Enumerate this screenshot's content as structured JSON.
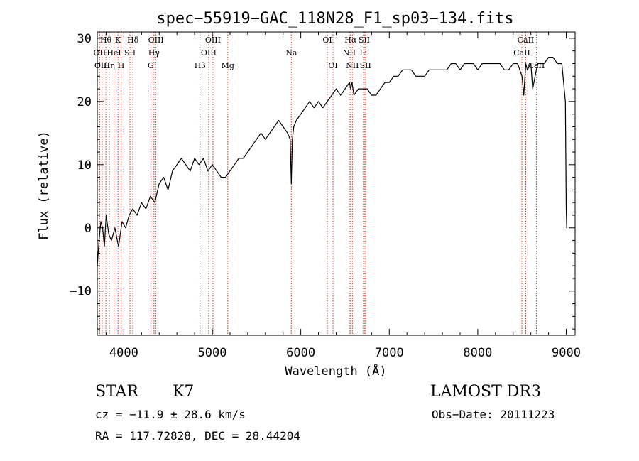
{
  "chart_data": {
    "type": "line",
    "title": "spec−55919−GAC_118N28_F1_sp03−134.fits",
    "xlabel": "Wavelength (Å)",
    "ylabel": "Flux (relative)",
    "xlim": [
      3700,
      9100
    ],
    "ylim": [
      -17,
      31
    ],
    "xticks": [
      4000,
      5000,
      6000,
      7000,
      8000,
      9000
    ],
    "yticks": [
      -10,
      0,
      10,
      20,
      30
    ],
    "grid": false,
    "series": [
      {
        "x": [
          3700,
          3720,
          3740,
          3760,
          3780,
          3800,
          3830,
          3860,
          3900,
          3940,
          3980,
          4020,
          4060,
          4100,
          4150,
          4200,
          4250,
          4300,
          4350,
          4400,
          4450,
          4500,
          4550,
          4600,
          4650,
          4700,
          4750,
          4800,
          4850,
          4900,
          4950,
          5000,
          5050,
          5100,
          5150,
          5200,
          5250,
          5300,
          5350,
          5400,
          5450,
          5500,
          5550,
          5600,
          5650,
          5700,
          5750,
          5800,
          5850,
          5880,
          5893,
          5905,
          5920,
          5950,
          6000,
          6050,
          6100,
          6150,
          6200,
          6250,
          6300,
          6350,
          6400,
          6450,
          6500,
          6550,
          6563,
          6580,
          6600,
          6650,
          6700,
          6750,
          6800,
          6850,
          6900,
          6950,
          7000,
          7050,
          7100,
          7150,
          7200,
          7250,
          7300,
          7350,
          7400,
          7450,
          7500,
          7550,
          7600,
          7650,
          7700,
          7750,
          7800,
          7850,
          7900,
          7950,
          8000,
          8050,
          8100,
          8150,
          8200,
          8250,
          8300,
          8350,
          8400,
          8450,
          8500,
          8520,
          8542,
          8560,
          8600,
          8620,
          8662,
          8680,
          8700,
          8750,
          8800,
          8850,
          8900,
          8950,
          8990,
          9000,
          9005,
          9010
        ],
        "values": [
          -6,
          -2,
          1,
          0,
          -3,
          2,
          -1,
          -2,
          0,
          -3,
          1,
          0,
          2,
          3,
          2,
          4,
          3,
          5,
          4,
          7,
          8,
          6,
          9,
          10,
          11,
          10,
          9,
          11,
          10,
          11,
          9,
          10,
          9,
          8,
          8,
          9,
          10,
          11,
          11,
          12,
          13,
          14,
          15,
          14,
          15,
          16,
          17,
          16,
          15,
          14,
          7,
          14,
          16,
          17,
          18,
          19,
          20,
          19,
          20,
          19,
          20,
          21,
          22,
          21,
          22,
          23,
          22,
          23,
          21,
          22,
          22,
          22,
          21,
          21,
          22,
          23,
          23,
          24,
          24,
          25,
          25,
          25,
          24,
          24,
          24,
          25,
          25,
          25,
          25,
          25,
          26,
          26,
          25,
          26,
          26,
          26,
          25,
          26,
          26,
          26,
          26,
          26,
          25,
          25,
          26,
          26,
          24,
          21,
          26,
          25,
          26,
          22,
          25,
          26,
          26,
          26,
          27,
          27,
          26,
          26,
          20,
          3,
          0,
          0
        ]
      }
    ],
    "lines": [
      {
        "label": "Hθ",
        "x": 3797,
        "row": 0
      },
      {
        "label": "OII",
        "x": 3727,
        "row": 1
      },
      {
        "label": "OIII",
        "x": 3755,
        "row": 2
      },
      {
        "label": "K",
        "x": 3934,
        "row": 0
      },
      {
        "label": "HeI",
        "x": 3889,
        "row": 1
      },
      {
        "label": "Hη",
        "x": 3835,
        "row": 2
      },
      {
        "label": "SII",
        "x": 4069,
        "row": 1
      },
      {
        "label": "H",
        "x": 3969,
        "row": 2
      },
      {
        "label": "Hδ",
        "x": 4102,
        "row": 0
      },
      {
        "label": "OIII",
        "x": 4363,
        "row": 0
      },
      {
        "label": "Hγ",
        "x": 4341,
        "row": 1
      },
      {
        "label": "G",
        "x": 4305,
        "row": 2
      },
      {
        "label": "OIII",
        "x": 5007,
        "row": 0
      },
      {
        "label": "OIII",
        "x": 4959,
        "row": 1
      },
      {
        "label": "Hβ",
        "x": 4861,
        "row": 2
      },
      {
        "label": "Mg",
        "x": 5175,
        "row": 2
      },
      {
        "label": "Na",
        "x": 5893,
        "row": 1
      },
      {
        "label": "OI",
        "x": 6300,
        "row": 0
      },
      {
        "label": "OI",
        "x": 6364,
        "row": 2
      },
      {
        "label": "Hα",
        "x": 6563,
        "row": 0
      },
      {
        "label": "SII",
        "x": 6717,
        "row": 0
      },
      {
        "label": "NII",
        "x": 6548,
        "row": 1
      },
      {
        "label": "Li",
        "x": 6708,
        "row": 1
      },
      {
        "label": "NII",
        "x": 6583,
        "row": 2
      },
      {
        "label": "SII",
        "x": 6731,
        "row": 2
      },
      {
        "label": "CaII",
        "x": 8542,
        "row": 0
      },
      {
        "label": "CaII",
        "x": 8498,
        "row": 1
      },
      {
        "label": "CaII",
        "x": 8662,
        "row": 2
      }
    ]
  },
  "info": {
    "class": "STAR",
    "subclass": "K7",
    "survey": "LAMOST DR3",
    "cz": "cz = −11.9 ± 28.6 km/s",
    "obs_date": "Obs−Date: 20111223",
    "radec": "RA = 117.72828, DEC =  28.44204"
  }
}
